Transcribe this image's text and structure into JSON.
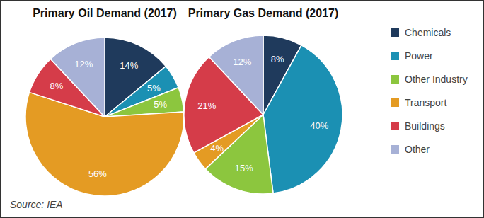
{
  "chart_data": [
    {
      "type": "pie",
      "title": "Primary Oil Demand (2017)",
      "categories": [
        "Chemicals",
        "Power",
        "Other Industry",
        "Transport",
        "Buildings",
        "Other"
      ],
      "values": [
        14,
        5,
        5,
        56,
        8,
        12
      ],
      "value_labels": [
        "14%",
        "5%",
        "5%",
        "56%",
        "8%",
        "12%"
      ],
      "colors": [
        "#1f3a5c",
        "#1b90b3",
        "#8cc63e",
        "#e49b23",
        "#d53c49",
        "#a7b1d6"
      ],
      "data_labels": true,
      "legend": "right"
    },
    {
      "type": "pie",
      "title": "Primary Gas Demand (2017)",
      "categories": [
        "Chemicals",
        "Power",
        "Other Industry",
        "Transport",
        "Buildings",
        "Other"
      ],
      "values": [
        8,
        40,
        15,
        4,
        21,
        12
      ],
      "value_labels": [
        "8%",
        "40%",
        "15%",
        "4%",
        "21%",
        "12%"
      ],
      "colors": [
        "#1f3a5c",
        "#1b90b3",
        "#8cc63e",
        "#e49b23",
        "#d53c49",
        "#a7b1d6"
      ],
      "data_labels": true
    }
  ],
  "source": "Source: IEA"
}
